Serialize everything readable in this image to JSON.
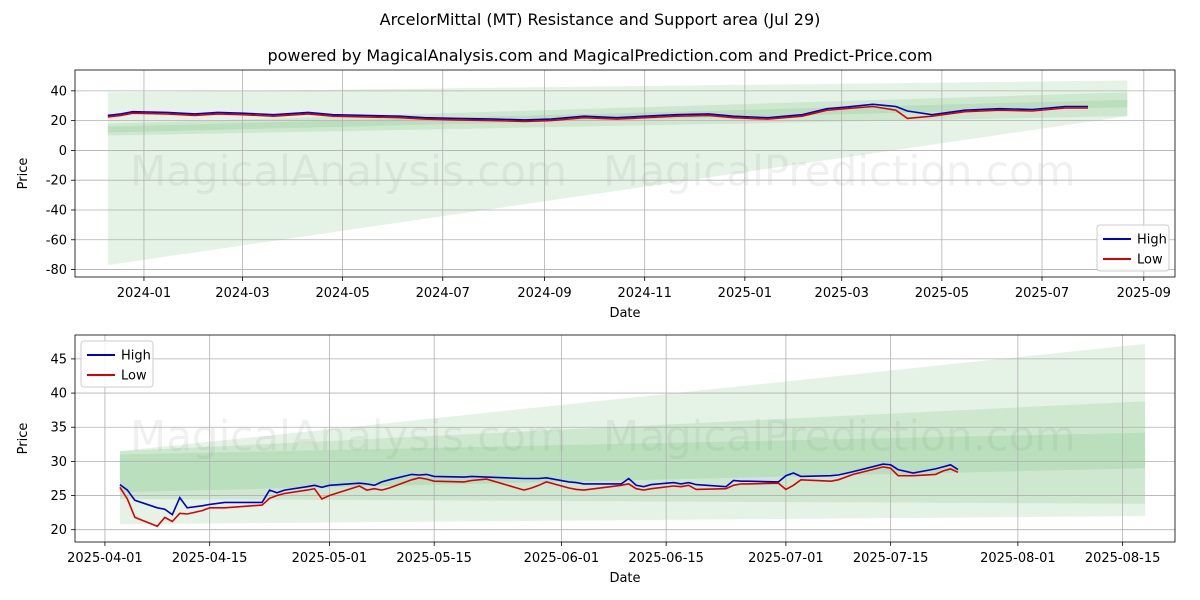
{
  "title": "ArcelorMittal (MT) Resistance and Support area (Jul 29)",
  "subtitle": "powered by MagicalAnalysis.com and MagicalPrediction.com and Predict-Price.com",
  "watermark": {
    "left": "MagicalAnalysis.com",
    "right": "MagicalPrediction.com"
  },
  "colors": {
    "high": "#0000cc",
    "low": "#dd0000",
    "band": "#4caf50",
    "grid": "#b0b0b0"
  },
  "chart_data": [
    {
      "type": "line",
      "xlabel": "Date",
      "ylabel": "Price",
      "ylim": [
        -85,
        54
      ],
      "xlim": [
        "2023-11-20",
        "2025-09-20"
      ],
      "x_ticks": [
        "2024-01",
        "2024-03",
        "2024-05",
        "2024-07",
        "2024-09",
        "2024-11",
        "2025-01",
        "2025-03",
        "2025-05",
        "2025-07",
        "2025-09"
      ],
      "x_tick_dates": [
        "2024-01-01",
        "2024-03-01",
        "2024-05-01",
        "2024-07-01",
        "2024-09-01",
        "2024-11-01",
        "2025-01-01",
        "2025-03-01",
        "2025-05-01",
        "2025-07-01",
        "2025-09-01"
      ],
      "y_ticks": [
        -80,
        -60,
        -40,
        -20,
        0,
        20,
        40
      ],
      "grid": true,
      "legend": {
        "placement": "lower-right",
        "entries": [
          "High",
          "Low"
        ]
      },
      "bands": [
        {
          "x": [
            "2023-12-10",
            "2025-08-22"
          ],
          "upper": [
            39,
            47
          ],
          "lower": [
            -77,
            23
          ]
        },
        {
          "x": [
            "2023-12-10",
            "2025-08-22"
          ],
          "upper": [
            18,
            39
          ],
          "lower": [
            10,
            23
          ]
        },
        {
          "x": [
            "2023-12-10",
            "2025-08-22"
          ],
          "upper": [
            16,
            34
          ],
          "lower": [
            12,
            29
          ]
        }
      ],
      "series": [
        {
          "name": "High",
          "x": [
            "2023-12-10",
            "2023-12-18",
            "2023-12-25",
            "2024-01-15",
            "2024-02-01",
            "2024-02-15",
            "2024-03-01",
            "2024-03-20",
            "2024-04-10",
            "2024-04-25",
            "2024-05-15",
            "2024-06-05",
            "2024-06-20",
            "2024-07-10",
            "2024-08-01",
            "2024-08-20",
            "2024-09-05",
            "2024-09-25",
            "2024-10-15",
            "2024-11-01",
            "2024-11-20",
            "2024-12-10",
            "2024-12-25",
            "2025-01-15",
            "2025-02-05",
            "2025-02-20",
            "2025-03-03",
            "2025-03-20",
            "2025-04-03",
            "2025-04-10",
            "2025-04-25",
            "2025-05-15",
            "2025-06-05",
            "2025-06-25",
            "2025-07-15",
            "2025-07-29"
          ],
          "values": [
            23.5,
            24.5,
            26,
            25.5,
            24.5,
            25.5,
            25,
            24,
            25.5,
            24,
            23.5,
            23,
            22,
            21.5,
            21,
            20.5,
            21,
            23,
            22,
            23,
            24,
            24.5,
            23,
            22,
            24,
            28,
            29,
            31,
            29.5,
            26.5,
            24,
            27,
            28,
            27.5,
            29.5,
            29.5
          ]
        },
        {
          "name": "Low",
          "x": [
            "2023-12-10",
            "2023-12-18",
            "2023-12-25",
            "2024-01-15",
            "2024-02-01",
            "2024-02-15",
            "2024-03-01",
            "2024-03-20",
            "2024-04-10",
            "2024-04-25",
            "2024-05-15",
            "2024-06-05",
            "2024-06-20",
            "2024-07-10",
            "2024-08-01",
            "2024-08-20",
            "2024-09-05",
            "2024-09-25",
            "2024-10-15",
            "2024-11-01",
            "2024-11-20",
            "2024-12-10",
            "2024-12-25",
            "2025-01-15",
            "2025-02-05",
            "2025-02-20",
            "2025-03-03",
            "2025-03-20",
            "2025-04-03",
            "2025-04-10",
            "2025-04-25",
            "2025-05-15",
            "2025-06-05",
            "2025-06-25",
            "2025-07-15",
            "2025-07-29"
          ],
          "values": [
            22.5,
            23.5,
            25,
            24.5,
            23.5,
            24.5,
            24,
            23,
            24.5,
            23,
            22.5,
            22,
            21,
            20.5,
            20,
            19.5,
            20,
            22,
            21,
            22,
            23,
            23.5,
            22,
            21,
            23,
            27,
            28,
            29.5,
            27,
            21.5,
            23,
            26,
            27,
            26.5,
            28.5,
            28.5
          ]
        }
      ]
    },
    {
      "type": "line",
      "xlabel": "Date",
      "ylabel": "Price",
      "ylim": [
        18.2,
        48.5
      ],
      "xlim": [
        "2025-03-28",
        "2025-08-22"
      ],
      "x_ticks": [
        "2025-04-01",
        "2025-04-15",
        "2025-05-01",
        "2025-05-15",
        "2025-06-01",
        "2025-06-15",
        "2025-07-01",
        "2025-07-15",
        "2025-08-01",
        "2025-08-15"
      ],
      "y_ticks": [
        20,
        25,
        30,
        35,
        40,
        45
      ],
      "grid": true,
      "legend": {
        "placement": "upper-left",
        "entries": [
          "High",
          "Low"
        ]
      },
      "bands": [
        {
          "x": [
            "2025-04-03",
            "2025-08-18"
          ],
          "upper": [
            31.5,
            47.2
          ],
          "lower": [
            20.8,
            22.0
          ]
        },
        {
          "x": [
            "2025-04-03",
            "2025-08-18"
          ],
          "upper": [
            31.5,
            38.8
          ],
          "lower": [
            24.5,
            23.8
          ]
        },
        {
          "x": [
            "2025-04-03",
            "2025-08-18"
          ],
          "upper": [
            31.0,
            34.2
          ],
          "lower": [
            25.5,
            29.0
          ]
        }
      ],
      "series": [
        {
          "name": "High",
          "x": [
            "2025-04-03",
            "2025-04-04",
            "2025-04-05",
            "2025-04-08",
            "2025-04-09",
            "2025-04-10",
            "2025-04-11",
            "2025-04-12",
            "2025-04-14",
            "2025-04-15",
            "2025-04-17",
            "2025-04-22",
            "2025-04-23",
            "2025-04-24",
            "2025-04-25",
            "2025-04-28",
            "2025-04-29",
            "2025-04-30",
            "2025-05-01",
            "2025-05-05",
            "2025-05-06",
            "2025-05-07",
            "2025-05-08",
            "2025-05-09",
            "2025-05-12",
            "2025-05-13",
            "2025-05-14",
            "2025-05-15",
            "2025-05-19",
            "2025-05-20",
            "2025-05-22",
            "2025-05-27",
            "2025-05-28",
            "2025-05-29",
            "2025-05-30",
            "2025-06-02",
            "2025-06-03",
            "2025-06-04",
            "2025-06-09",
            "2025-06-10",
            "2025-06-11",
            "2025-06-12",
            "2025-06-13",
            "2025-06-16",
            "2025-06-17",
            "2025-06-18",
            "2025-06-19",
            "2025-06-23",
            "2025-06-24",
            "2025-06-25",
            "2025-06-26",
            "2025-06-30",
            "2025-07-01",
            "2025-07-02",
            "2025-07-03",
            "2025-07-07",
            "2025-07-08",
            "2025-07-10",
            "2025-07-14",
            "2025-07-15",
            "2025-07-16",
            "2025-07-18",
            "2025-07-21",
            "2025-07-22",
            "2025-07-23",
            "2025-07-24"
          ],
          "values": [
            26.6,
            25.8,
            24.3,
            23.2,
            23.0,
            22.2,
            24.7,
            23.2,
            23.5,
            23.7,
            24.0,
            24.0,
            25.8,
            25.4,
            25.8,
            26.3,
            26.5,
            26.2,
            26.5,
            26.8,
            26.7,
            26.5,
            27.0,
            27.3,
            28.1,
            28.0,
            28.1,
            27.8,
            27.7,
            27.8,
            27.7,
            27.5,
            27.5,
            27.5,
            27.6,
            27.0,
            26.9,
            26.7,
            26.7,
            27.5,
            26.5,
            26.3,
            26.6,
            26.9,
            26.7,
            26.9,
            26.6,
            26.3,
            27.2,
            27.1,
            27.1,
            27.0,
            27.9,
            28.3,
            27.8,
            27.9,
            28.0,
            28.5,
            29.6,
            29.5,
            28.8,
            28.3,
            28.9,
            29.2,
            29.5,
            28.8
          ]
        },
        {
          "name": "Low",
          "x": [
            "2025-04-03",
            "2025-04-04",
            "2025-04-05",
            "2025-04-08",
            "2025-04-09",
            "2025-04-10",
            "2025-04-11",
            "2025-04-12",
            "2025-04-14",
            "2025-04-15",
            "2025-04-17",
            "2025-04-22",
            "2025-04-23",
            "2025-04-24",
            "2025-04-25",
            "2025-04-28",
            "2025-04-29",
            "2025-04-30",
            "2025-05-01",
            "2025-05-05",
            "2025-05-06",
            "2025-05-07",
            "2025-05-08",
            "2025-05-09",
            "2025-05-12",
            "2025-05-13",
            "2025-05-14",
            "2025-05-15",
            "2025-05-19",
            "2025-05-20",
            "2025-05-22",
            "2025-05-27",
            "2025-05-28",
            "2025-05-29",
            "2025-05-30",
            "2025-06-02",
            "2025-06-03",
            "2025-06-04",
            "2025-06-09",
            "2025-06-10",
            "2025-06-11",
            "2025-06-12",
            "2025-06-13",
            "2025-06-16",
            "2025-06-17",
            "2025-06-18",
            "2025-06-19",
            "2025-06-23",
            "2025-06-24",
            "2025-06-25",
            "2025-06-26",
            "2025-06-30",
            "2025-07-01",
            "2025-07-02",
            "2025-07-03",
            "2025-07-07",
            "2025-07-08",
            "2025-07-10",
            "2025-07-14",
            "2025-07-15",
            "2025-07-16",
            "2025-07-18",
            "2025-07-21",
            "2025-07-22",
            "2025-07-23",
            "2025-07-24"
          ],
          "values": [
            26.2,
            24.5,
            21.8,
            20.5,
            21.8,
            21.2,
            22.4,
            22.3,
            22.8,
            23.2,
            23.2,
            23.6,
            24.6,
            25.0,
            25.3,
            25.8,
            26.0,
            24.5,
            25.0,
            26.4,
            25.8,
            26.0,
            25.8,
            26.1,
            27.3,
            27.6,
            27.4,
            27.1,
            27.0,
            27.2,
            27.4,
            25.8,
            26.1,
            26.5,
            27.0,
            26.1,
            25.9,
            25.8,
            26.5,
            26.7,
            26.0,
            25.8,
            26.0,
            26.4,
            26.3,
            26.5,
            25.9,
            26.0,
            26.5,
            26.7,
            26.7,
            26.8,
            25.9,
            26.5,
            27.3,
            27.1,
            27.3,
            28.1,
            29.2,
            29.0,
            27.9,
            27.9,
            28.1,
            28.6,
            28.9,
            28.4
          ]
        }
      ]
    }
  ]
}
